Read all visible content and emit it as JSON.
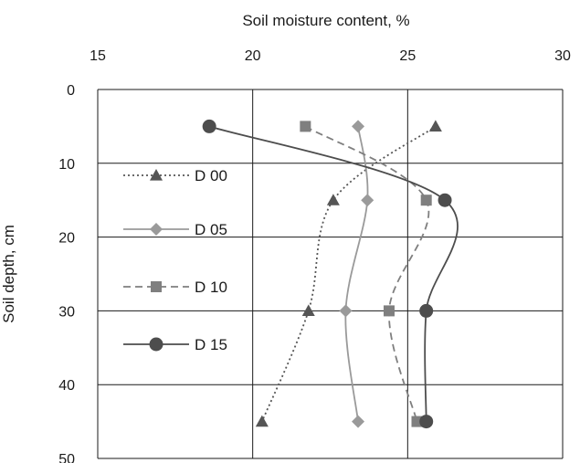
{
  "chart_data": {
    "type": "line",
    "xlabel": "Soil moisture content, %",
    "ylabel": "Soil depth, cm",
    "xlim": [
      15,
      30
    ],
    "ylim": [
      0,
      50
    ],
    "x_axis_position": "top",
    "y_axis_inverted": true,
    "x_ticks": [
      "15",
      "20",
      "25",
      "30"
    ],
    "y_ticks": [
      "0",
      "10",
      "20",
      "30",
      "40",
      "50"
    ],
    "grid": "horizontal and vertical",
    "legend_placement": "left",
    "series": [
      {
        "name": "D 00",
        "marker": "triangle",
        "line_style": "dotted",
        "color": "#555555",
        "points": [
          {
            "moisture": 25.9,
            "depth": 5
          },
          {
            "moisture": 22.6,
            "depth": 15
          },
          {
            "moisture": 21.8,
            "depth": 30
          },
          {
            "moisture": 20.3,
            "depth": 45
          }
        ]
      },
      {
        "name": "D 05",
        "marker": "diamond",
        "line_style": "solid",
        "color": "#9a9a9a",
        "points": [
          {
            "moisture": 23.4,
            "depth": 5
          },
          {
            "moisture": 23.7,
            "depth": 15
          },
          {
            "moisture": 23.0,
            "depth": 30
          },
          {
            "moisture": 23.4,
            "depth": 45
          }
        ]
      },
      {
        "name": "D 10",
        "marker": "square",
        "line_style": "dashed",
        "color": "#7f7f7f",
        "points": [
          {
            "moisture": 21.7,
            "depth": 5
          },
          {
            "moisture": 25.6,
            "depth": 15
          },
          {
            "moisture": 24.4,
            "depth": 30
          },
          {
            "moisture": 25.3,
            "depth": 45
          }
        ]
      },
      {
        "name": "D 15",
        "marker": "circle",
        "line_style": "solid",
        "color": "#4d4d4d",
        "points": [
          {
            "moisture": 18.6,
            "depth": 5
          },
          {
            "moisture": 26.2,
            "depth": 15
          },
          {
            "moisture": 25.6,
            "depth": 30
          },
          {
            "moisture": 25.6,
            "depth": 45
          }
        ]
      }
    ]
  }
}
